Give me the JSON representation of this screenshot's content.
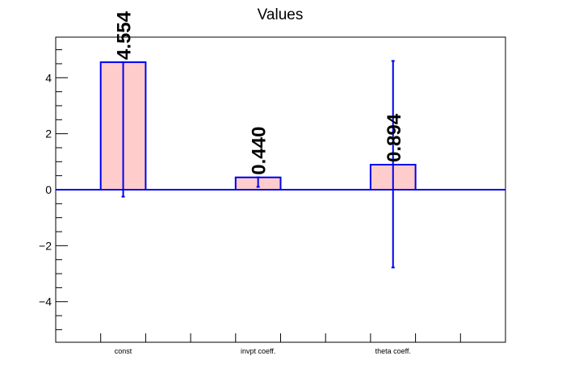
{
  "chart_data": {
    "type": "bar",
    "title": "Values",
    "xlabel": "",
    "ylabel": "",
    "categories": [
      "const",
      "invpt coeff.",
      "theta coeff."
    ],
    "values": [
      4.554,
      0.44,
      0.894
    ],
    "value_labels": [
      "4.554",
      "0.440",
      "0.894"
    ],
    "error_low": [
      -0.25,
      0.1,
      -2.78
    ],
    "error_high": [
      4.554,
      0.44,
      4.6
    ],
    "ylim": [
      -5.45,
      5.45
    ],
    "yticks": [
      -4,
      -2,
      0,
      2,
      4
    ],
    "ytick_labels": [
      "−4",
      "−2",
      "0",
      "2",
      "4"
    ],
    "grid": false,
    "colors": {
      "bar_fill": "#ffcccc",
      "bar_edge": "#0000ee",
      "error_bar": "#0000ee",
      "zero_line": "#0000ee",
      "frame": "#000000"
    }
  }
}
